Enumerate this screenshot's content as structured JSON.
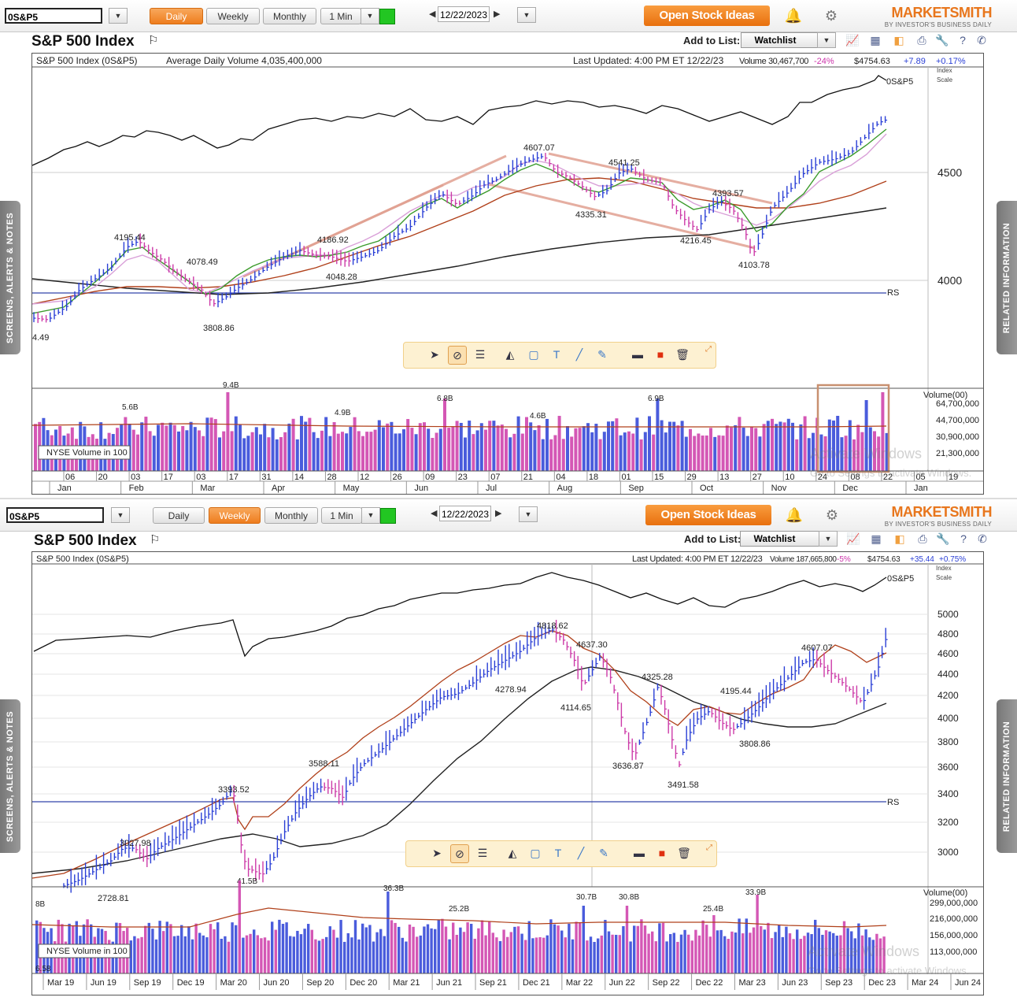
{
  "panels": [
    {
      "toolbar": {
        "symbol": "0S&P5",
        "periods": [
          "Daily",
          "Weekly",
          "Monthly"
        ],
        "active_period": "Daily",
        "interval": "1 Min",
        "date": "12/22/2023",
        "open_stock_ideas": "Open Stock Ideas",
        "logo": "MARKETSMITH",
        "logo_sub": "BY INVESTOR'S BUSINESS DAILY"
      },
      "title": "S&P 500 Index",
      "add_to_list": "Add to List:",
      "watchlist": "Watchlist",
      "side_left": "SCREENS, ALERTS & NOTES",
      "side_right": "RELATED INFORMATION",
      "header": {
        "name": "S&P 500 Index   (0S&P5)",
        "avg_volume": "Average Daily Volume 4,035,400,000",
        "updated": "Last Updated: 4:00 PM ET 12/22/23",
        "volume": "Volume 30,467,700",
        "volume_pct": "-24%",
        "price": "$4754.63",
        "change": "+7.89",
        "change_pct": "+0.17%"
      },
      "scale_label": [
        "Index",
        "Scale"
      ],
      "rs_line_label": "0S&P5",
      "rs_label": "RS",
      "y_labels": [
        "4500",
        "4000"
      ],
      "price_annotations": [
        "4607.07",
        "4541.25",
        "4393.57",
        "4335.31",
        "4216.45",
        "4103.78",
        "4195.44",
        "4078.49",
        "4186.92",
        "4048.28",
        "3808.86",
        "4.49"
      ],
      "volume_panel": {
        "label": "Volume(00)",
        "scale": [
          "64,700,000",
          "44,700,000",
          "30,900,000",
          "21,300,000"
        ],
        "annotations": [
          "9.4B",
          "5.6B",
          "4.9B",
          "6.8B",
          "4.6B",
          "6.9B"
        ],
        "legend": "NYSE Volume in 100"
      },
      "x_day_labels": [
        "06",
        "20",
        "03",
        "17",
        "03",
        "17",
        "31",
        "14",
        "28",
        "12",
        "26",
        "09",
        "23",
        "07",
        "21",
        "04",
        "18",
        "01",
        "15",
        "29",
        "13",
        "27",
        "10",
        "24",
        "08",
        "22",
        "05",
        "19"
      ],
      "x_month_labels": [
        "Jan",
        "Feb",
        "Mar",
        "Apr",
        "May",
        "Jun",
        "Jul",
        "Aug",
        "Sep",
        "Oct",
        "Nov",
        "Dec",
        "Jan"
      ],
      "watermark": "Activate Windows",
      "watermark_sub": "Go to Settings to activate Windows."
    },
    {
      "toolbar": {
        "symbol": "0S&P5",
        "periods": [
          "Daily",
          "Weekly",
          "Monthly"
        ],
        "active_period": "Weekly",
        "interval": "1 Min",
        "date": "12/22/2023",
        "open_stock_ideas": "Open Stock Ideas",
        "logo": "MARKETSMITH",
        "logo_sub": "BY INVESTOR'S BUSINESS DAILY"
      },
      "title": "S&P 500 Index",
      "add_to_list": "Add to List:",
      "watchlist": "Watchlist",
      "side_left": "SCREENS, ALERTS & NOTES",
      "side_right": "RELATED INFORMATION",
      "header": {
        "name": "S&P 500 Index   (0S&P5)",
        "updated": "Last Updated: 4:00 PM ET 12/22/23",
        "volume": "Volume 187,665,800",
        "volume_pct": "-5%",
        "price": "$4754.63",
        "change": "+35.44",
        "change_pct": "+0.75%"
      },
      "scale_label": [
        "Index",
        "Scale"
      ],
      "rs_line_label": "0S&P5",
      "rs_label": "RS",
      "y_labels": [
        "5000",
        "4800",
        "4600",
        "4400",
        "4200",
        "4000",
        "3800",
        "3600",
        "3400",
        "3200",
        "3000"
      ],
      "price_annotations": [
        "4818.62",
        "4637.30",
        "4325.28",
        "4607.07",
        "4278.94",
        "4114.65",
        "4195.44",
        "3636.87",
        "3491.58",
        "3808.86",
        "3588.11",
        "3393.52",
        "3027.98",
        "2728.81",
        "41.5B"
      ],
      "volume_panel": {
        "label": "Volume(00)",
        "scale": [
          "299,000,000",
          "216,000,000",
          "156,000,000",
          "113,000,000"
        ],
        "annotations": [
          "36.3B",
          "25.2B",
          "30.7B",
          "30.8B",
          "25.4B",
          "33.9B",
          "8B"
        ],
        "legend": "NYSE Volume in 100",
        "corner": "6.58"
      },
      "x_month_labels": [
        "Mar 19",
        "Jun 19",
        "Sep 19",
        "Dec 19",
        "Mar 20",
        "Jun 20",
        "Sep 20",
        "Dec 20",
        "Mar 21",
        "Jun 21",
        "Sep 21",
        "Dec 21",
        "Mar 22",
        "Jun 22",
        "Sep 22",
        "Dec 22",
        "Mar 23",
        "Jun 23",
        "Sep 23",
        "Dec 23",
        "Mar 24",
        "Jun 24"
      ],
      "watermark": "Activate Windows",
      "watermark_sub": "Go to Settings to activate Windows."
    }
  ],
  "colors": {
    "accent": "#ee7d1e",
    "up": "#2a3fd6",
    "down": "#cc3aa8",
    "ma50": "#3a9a2a",
    "ma21": "#d9a0d8",
    "ma200": "#222222",
    "ma_red": "#b0401a",
    "trend": "#e0a090"
  }
}
